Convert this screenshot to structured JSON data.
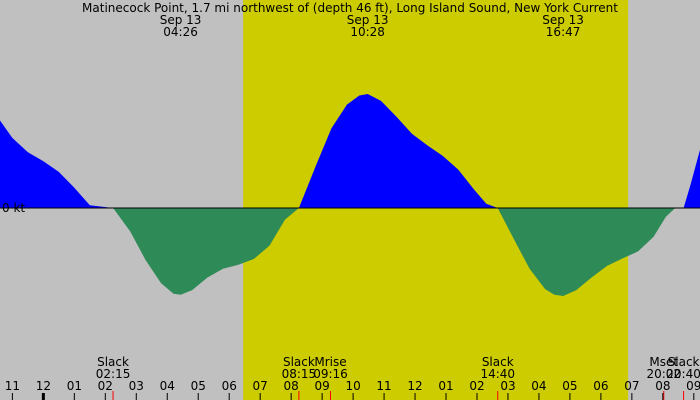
{
  "chart_data": {
    "type": "area",
    "title": "Matinecock Point, 1.7 mi northwest of (depth 46 ft), Long Island Sound, New York Current",
    "ylabel_zero": "0 kt",
    "colors": {
      "background": "#c0c0c0",
      "daylight": "#cccc00",
      "flood": "#0000ff",
      "ebb": "#2e8b57",
      "tick_marker": "#ff0000"
    },
    "daylight_hours": [
      6.45,
      18.88
    ],
    "peaks": [
      {
        "date": "Sep 13",
        "time": "04:26",
        "hour": 4.43
      },
      {
        "date": "Sep 13",
        "time": "10:28",
        "hour": 10.47
      },
      {
        "date": "Sep 13",
        "time": "16:47",
        "hour": 16.78
      }
    ],
    "events": [
      {
        "name": "Slack",
        "time": "02:15",
        "hour": 2.25
      },
      {
        "name": "Slack",
        "time": "08:15",
        "hour": 8.25
      },
      {
        "name": "Mrise",
        "time": "09:16",
        "hour": 9.27
      },
      {
        "name": "Slack",
        "time": "14:40",
        "hour": 14.67
      },
      {
        "name": "Mset",
        "time": "20:02",
        "hour": 20.03
      },
      {
        "name": "Slack",
        "time": "20:40",
        "hour": 20.67
      }
    ],
    "x_ticks": [
      {
        "label": "11",
        "hour": -1
      },
      {
        "label": "12",
        "hour": 0
      },
      {
        "label": "01",
        "hour": 1
      },
      {
        "label": "02",
        "hour": 2
      },
      {
        "label": "03",
        "hour": 3
      },
      {
        "label": "04",
        "hour": 4
      },
      {
        "label": "05",
        "hour": 5
      },
      {
        "label": "06",
        "hour": 6
      },
      {
        "label": "07",
        "hour": 7
      },
      {
        "label": "08",
        "hour": 8
      },
      {
        "label": "09",
        "hour": 9
      },
      {
        "label": "10",
        "hour": 10
      },
      {
        "label": "11",
        "hour": 11
      },
      {
        "label": "12",
        "hour": 12
      },
      {
        "label": "01",
        "hour": 13
      },
      {
        "label": "02",
        "hour": 14
      },
      {
        "label": "03",
        "hour": 15
      },
      {
        "label": "04",
        "hour": 16
      },
      {
        "label": "05",
        "hour": 17
      },
      {
        "label": "06",
        "hour": 18
      },
      {
        "label": "07",
        "hour": 19
      },
      {
        "label": "08",
        "hour": 20
      },
      {
        "label": "09",
        "hour": 21
      }
    ],
    "xlim": [
      -1.4,
      21.2
    ],
    "ylim": [
      -1.8,
      2.3
    ],
    "series": [
      {
        "values": [
          [
            -1.4,
            1.65
          ],
          [
            -1.0,
            1.32
          ],
          [
            -0.5,
            1.05
          ],
          [
            0.0,
            0.88
          ],
          [
            0.5,
            0.68
          ],
          [
            1.0,
            0.38
          ],
          [
            1.5,
            0.05
          ],
          [
            2.25,
            0.0
          ],
          [
            2.8,
            -0.4
          ],
          [
            3.3,
            -0.9
          ],
          [
            3.8,
            -1.3
          ],
          [
            4.2,
            -1.48
          ],
          [
            4.43,
            -1.5
          ],
          [
            4.8,
            -1.42
          ],
          [
            5.3,
            -1.2
          ],
          [
            5.8,
            -1.05
          ],
          [
            6.3,
            -0.98
          ],
          [
            6.8,
            -0.88
          ],
          [
            7.3,
            -0.65
          ],
          [
            7.8,
            -0.2
          ],
          [
            8.25,
            0.0
          ],
          [
            8.8,
            0.8
          ],
          [
            9.3,
            1.5
          ],
          [
            9.8,
            1.95
          ],
          [
            10.2,
            2.12
          ],
          [
            10.47,
            2.15
          ],
          [
            10.9,
            2.02
          ],
          [
            11.4,
            1.72
          ],
          [
            11.9,
            1.4
          ],
          [
            12.4,
            1.18
          ],
          [
            12.9,
            0.98
          ],
          [
            13.4,
            0.72
          ],
          [
            13.9,
            0.35
          ],
          [
            14.3,
            0.08
          ],
          [
            14.67,
            0.0
          ],
          [
            15.2,
            -0.55
          ],
          [
            15.7,
            -1.05
          ],
          [
            16.2,
            -1.4
          ],
          [
            16.5,
            -1.5
          ],
          [
            16.78,
            -1.52
          ],
          [
            17.2,
            -1.42
          ],
          [
            17.7,
            -1.2
          ],
          [
            18.2,
            -1.0
          ],
          [
            18.7,
            -0.87
          ],
          [
            19.2,
            -0.75
          ],
          [
            19.7,
            -0.5
          ],
          [
            20.1,
            -0.15
          ],
          [
            20.4,
            0.0
          ],
          [
            20.67,
            0.0
          ],
          [
            20.9,
            0.45
          ],
          [
            21.2,
            1.1
          ]
        ]
      }
    ]
  }
}
